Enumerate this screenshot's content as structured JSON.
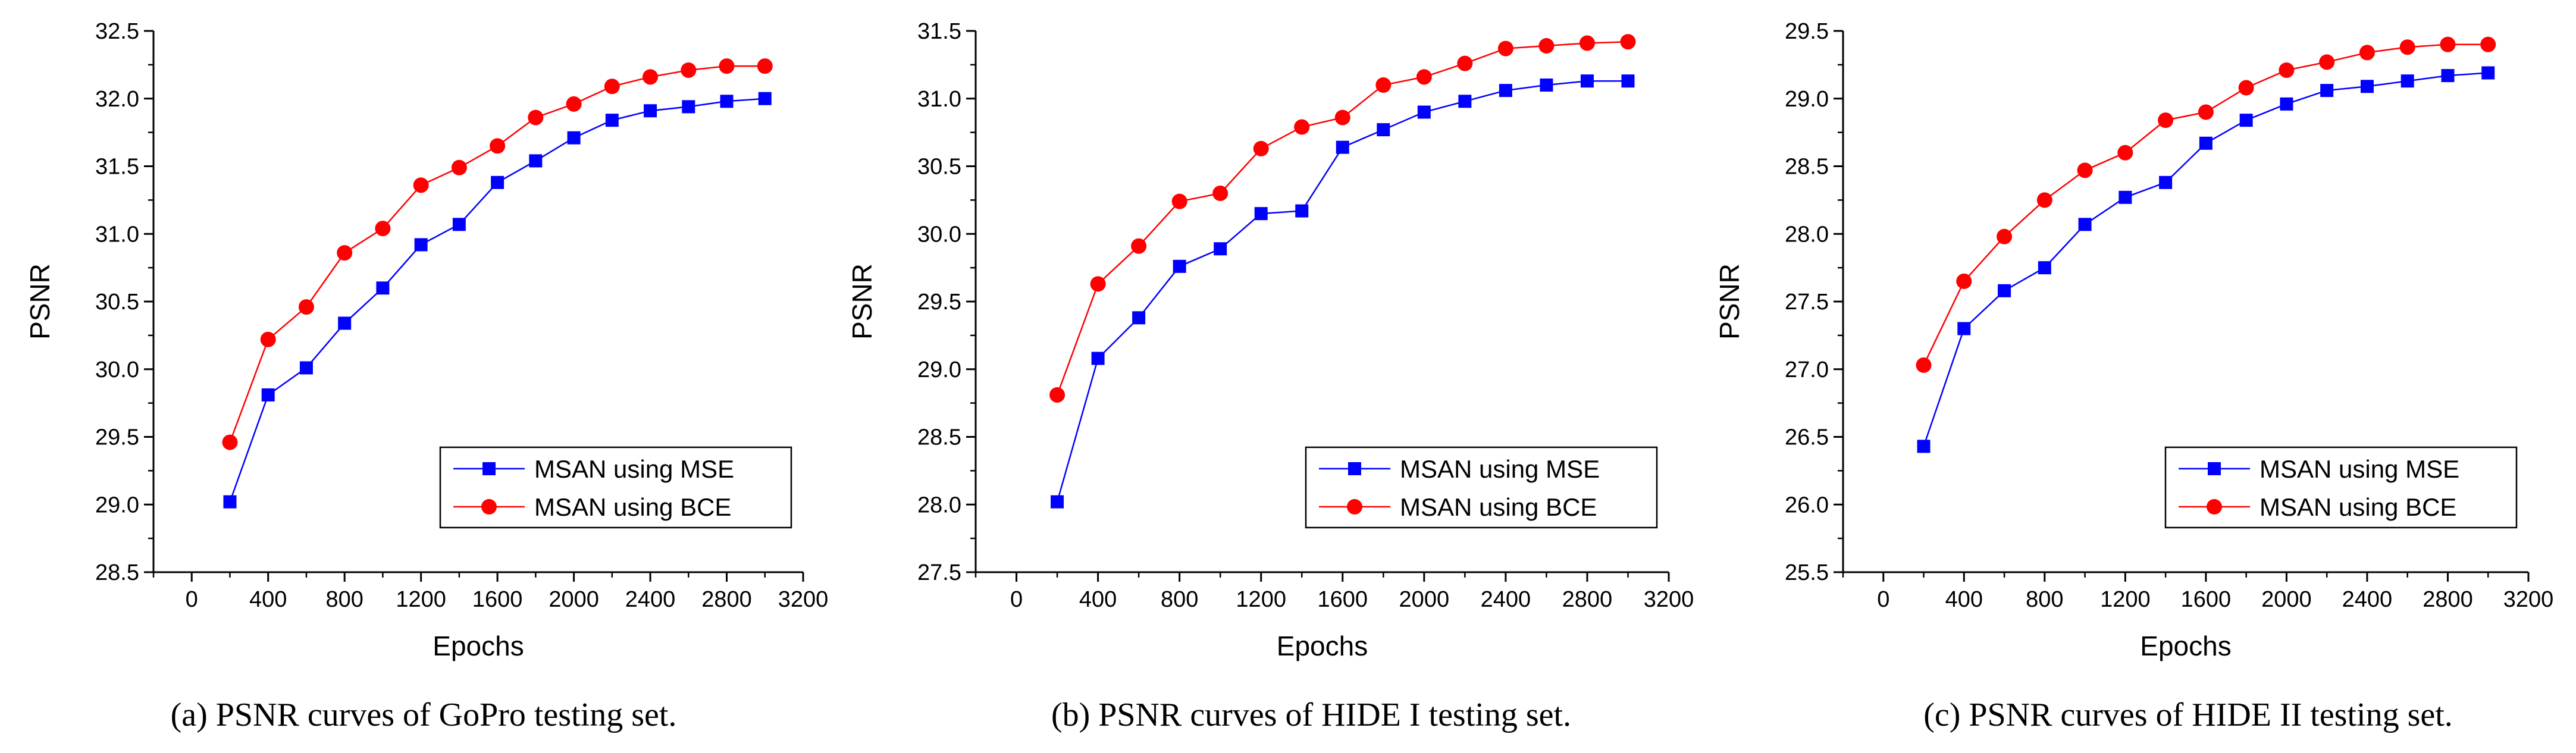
{
  "series_styles": [
    {
      "color": "#0000ff",
      "marker": "square"
    },
    {
      "color": "#ff0000",
      "marker": "circle"
    }
  ],
  "chart_data": [
    {
      "type": "line",
      "caption": "(a)  PSNR curves of GoPro testing set.",
      "xlabel": "Epochs",
      "ylabel": "PSNR",
      "xlim": [
        -200,
        3200
      ],
      "ylim": [
        28.5,
        32.5
      ],
      "xticks": [
        0,
        400,
        800,
        1200,
        1600,
        2000,
        2400,
        2800,
        3200
      ],
      "yticks": [
        28.5,
        29.0,
        29.5,
        30.0,
        30.5,
        31.0,
        31.5,
        32.0,
        32.5
      ],
      "legend_position": "bottom-right",
      "x": [
        200,
        400,
        600,
        800,
        1000,
        1200,
        1400,
        1600,
        1800,
        2000,
        2200,
        2400,
        2600,
        2800,
        3000
      ],
      "series": [
        {
          "name": "MSAN using MSE",
          "values": [
            29.02,
            29.81,
            30.01,
            30.34,
            30.6,
            30.92,
            31.07,
            31.38,
            31.54,
            31.71,
            31.84,
            31.91,
            31.94,
            31.98,
            32.0
          ]
        },
        {
          "name": "MSAN using BCE",
          "values": [
            29.46,
            30.22,
            30.46,
            30.86,
            31.04,
            31.36,
            31.49,
            31.65,
            31.86,
            31.96,
            32.09,
            32.16,
            32.21,
            32.24,
            32.24
          ]
        }
      ]
    },
    {
      "type": "line",
      "caption": "(b)  PSNR curves of HIDE I testing set.",
      "xlabel": "Epochs",
      "ylabel": "PSNR",
      "xlim": [
        -200,
        3200
      ],
      "ylim": [
        27.5,
        31.5
      ],
      "xticks": [
        0,
        400,
        800,
        1200,
        1600,
        2000,
        2400,
        2800,
        3200
      ],
      "yticks": [
        27.5,
        28.0,
        28.5,
        29.0,
        29.5,
        30.0,
        30.5,
        31.0,
        31.5
      ],
      "legend_position": "bottom-right",
      "x": [
        200,
        400,
        600,
        800,
        1000,
        1200,
        1400,
        1600,
        1800,
        2000,
        2200,
        2400,
        2600,
        2800,
        3000
      ],
      "series": [
        {
          "name": "MSAN using MSE",
          "values": [
            28.02,
            29.08,
            29.38,
            29.76,
            29.89,
            30.15,
            30.17,
            30.64,
            30.77,
            30.9,
            30.98,
            31.06,
            31.1,
            31.13,
            31.13
          ]
        },
        {
          "name": "MSAN using BCE",
          "values": [
            28.81,
            29.63,
            29.91,
            30.24,
            30.3,
            30.63,
            30.79,
            30.86,
            31.1,
            31.16,
            31.26,
            31.37,
            31.39,
            31.41,
            31.42
          ]
        }
      ]
    },
    {
      "type": "line",
      "caption": "(c)  PSNR curves of HIDE II testing set.",
      "xlabel": "Epochs",
      "ylabel": "PSNR",
      "xlim": [
        -200,
        3200
      ],
      "ylim": [
        25.5,
        29.5
      ],
      "xticks": [
        0,
        400,
        800,
        1200,
        1600,
        2000,
        2400,
        2800,
        3200
      ],
      "yticks": [
        25.5,
        26.0,
        26.5,
        27.0,
        27.5,
        28.0,
        28.5,
        29.0,
        29.5
      ],
      "legend_position": "bottom-right",
      "x": [
        200,
        400,
        600,
        800,
        1000,
        1200,
        1400,
        1600,
        1800,
        2000,
        2200,
        2400,
        2600,
        2800,
        3000
      ],
      "series": [
        {
          "name": "MSAN using MSE",
          "values": [
            26.43,
            27.3,
            27.58,
            27.75,
            28.07,
            28.27,
            28.38,
            28.67,
            28.84,
            28.96,
            29.06,
            29.09,
            29.13,
            29.17,
            29.19
          ]
        },
        {
          "name": "MSAN using BCE",
          "values": [
            27.03,
            27.65,
            27.98,
            28.25,
            28.47,
            28.6,
            28.84,
            28.9,
            29.08,
            29.21,
            29.27,
            29.34,
            29.38,
            29.4,
            29.4
          ]
        }
      ]
    }
  ]
}
